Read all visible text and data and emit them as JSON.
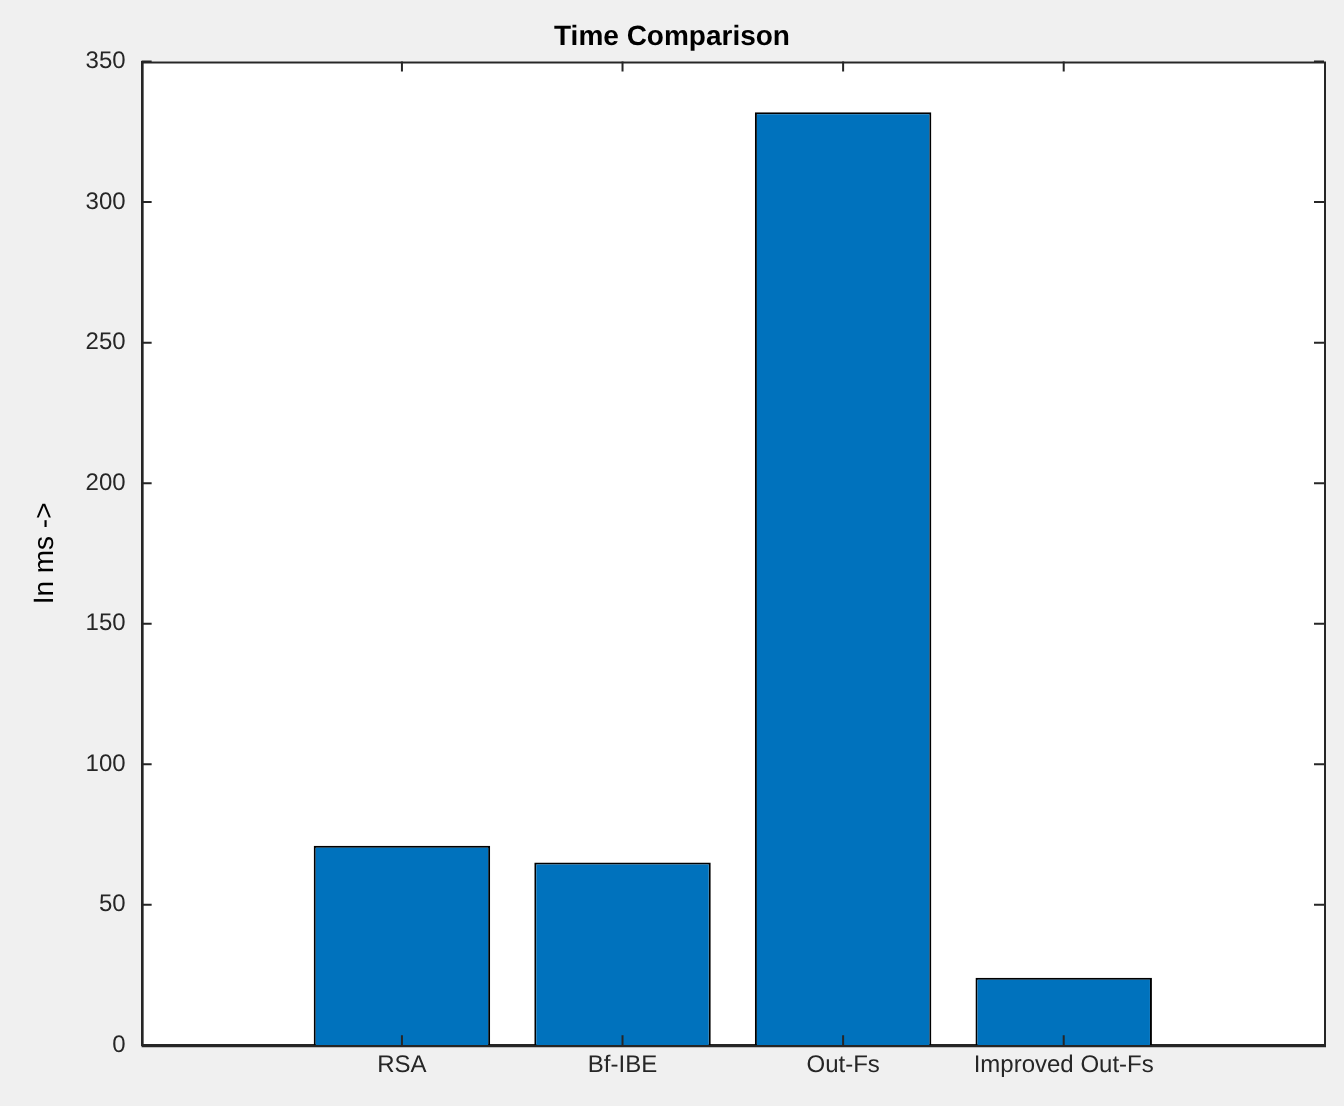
{
  "chart_data": {
    "type": "bar",
    "title": "Time Comparison",
    "ylabel": "In ms ->",
    "categories": [
      "RSA",
      "Bf-IBE",
      "Out-Fs",
      "Improved Out-Fs"
    ],
    "values": [
      71,
      65,
      332,
      24
    ],
    "color": "#0072bd",
    "ylim": [
      0,
      350
    ],
    "yticks": [
      0,
      50,
      100,
      150,
      200,
      250,
      300,
      350
    ],
    "grid": false
  }
}
